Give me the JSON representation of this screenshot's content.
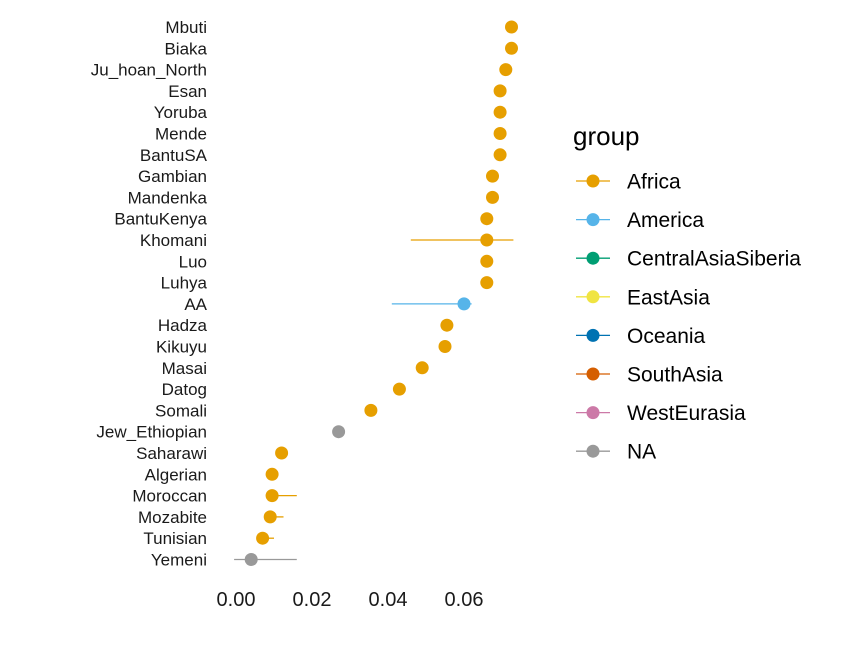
{
  "chart_data": {
    "type": "scatter",
    "subtype": "dot-with-interval",
    "title": "",
    "xlabel": "",
    "ylabel": "",
    "xlim": [
      -0.008,
      0.078
    ],
    "xticks": [
      0.0,
      0.02,
      0.04,
      0.06
    ],
    "xtick_labels": [
      "0.00",
      "0.02",
      "0.04",
      "0.06"
    ],
    "grid": false,
    "legend_position": "right",
    "legend_title": "group",
    "groups": [
      {
        "name": "Africa",
        "color": "#E69F00"
      },
      {
        "name": "America",
        "color": "#56B4E9"
      },
      {
        "name": "CentralAsiaSiberia",
        "color": "#009E73"
      },
      {
        "name": "EastAsia",
        "color": "#F0E442"
      },
      {
        "name": "Oceania",
        "color": "#0072B2"
      },
      {
        "name": "SouthAsia",
        "color": "#D55E00"
      },
      {
        "name": "WestEurasia",
        "color": "#CC79A7"
      },
      {
        "name": "NA",
        "color": "#999999"
      }
    ],
    "points": [
      {
        "label": "Mbuti",
        "value": 0.0725,
        "low": 0.0725,
        "high": 0.0725,
        "group": "Africa"
      },
      {
        "label": "Biaka",
        "value": 0.0725,
        "low": 0.0725,
        "high": 0.0725,
        "group": "Africa"
      },
      {
        "label": "Ju_hoan_North",
        "value": 0.071,
        "low": 0.071,
        "high": 0.071,
        "group": "Africa"
      },
      {
        "label": "Esan",
        "value": 0.0695,
        "low": 0.0695,
        "high": 0.0695,
        "group": "Africa"
      },
      {
        "label": "Yoruba",
        "value": 0.0695,
        "low": 0.0695,
        "high": 0.0695,
        "group": "Africa"
      },
      {
        "label": "Mende",
        "value": 0.0695,
        "low": 0.0695,
        "high": 0.0695,
        "group": "Africa"
      },
      {
        "label": "BantuSA",
        "value": 0.0695,
        "low": 0.0695,
        "high": 0.0695,
        "group": "Africa"
      },
      {
        "label": "Gambian",
        "value": 0.0675,
        "low": 0.0665,
        "high": 0.068,
        "group": "Africa"
      },
      {
        "label": "Mandenka",
        "value": 0.0675,
        "low": 0.0675,
        "high": 0.0675,
        "group": "Africa"
      },
      {
        "label": "BantuKenya",
        "value": 0.066,
        "low": 0.066,
        "high": 0.066,
        "group": "Africa"
      },
      {
        "label": "Khomani",
        "value": 0.066,
        "low": 0.046,
        "high": 0.073,
        "group": "Africa"
      },
      {
        "label": "Luo",
        "value": 0.066,
        "low": 0.066,
        "high": 0.066,
        "group": "Africa"
      },
      {
        "label": "Luhya",
        "value": 0.066,
        "low": 0.066,
        "high": 0.066,
        "group": "Africa"
      },
      {
        "label": "AA",
        "value": 0.06,
        "low": 0.041,
        "high": 0.062,
        "group": "America"
      },
      {
        "label": "Hadza",
        "value": 0.0555,
        "low": 0.0555,
        "high": 0.0555,
        "group": "Africa"
      },
      {
        "label": "Kikuyu",
        "value": 0.055,
        "low": 0.055,
        "high": 0.055,
        "group": "Africa"
      },
      {
        "label": "Masai",
        "value": 0.049,
        "low": 0.0475,
        "high": 0.049,
        "group": "Africa"
      },
      {
        "label": "Datog",
        "value": 0.043,
        "low": 0.043,
        "high": 0.043,
        "group": "Africa"
      },
      {
        "label": "Somali",
        "value": 0.0355,
        "low": 0.0355,
        "high": 0.0355,
        "group": "Africa"
      },
      {
        "label": "Jew_Ethiopian",
        "value": 0.027,
        "low": 0.027,
        "high": 0.027,
        "group": "NA"
      },
      {
        "label": "Saharawi",
        "value": 0.012,
        "low": 0.012,
        "high": 0.012,
        "group": "Africa"
      },
      {
        "label": "Algerian",
        "value": 0.0095,
        "low": 0.0085,
        "high": 0.0105,
        "group": "Africa"
      },
      {
        "label": "Moroccan",
        "value": 0.0095,
        "low": 0.0095,
        "high": 0.016,
        "group": "Africa"
      },
      {
        "label": "Mozabite",
        "value": 0.009,
        "low": 0.009,
        "high": 0.0125,
        "group": "Africa"
      },
      {
        "label": "Tunisian",
        "value": 0.007,
        "low": 0.007,
        "high": 0.01,
        "group": "Africa"
      },
      {
        "label": "Yemeni",
        "value": 0.004,
        "low": -0.0005,
        "high": 0.016,
        "group": "NA"
      }
    ]
  }
}
